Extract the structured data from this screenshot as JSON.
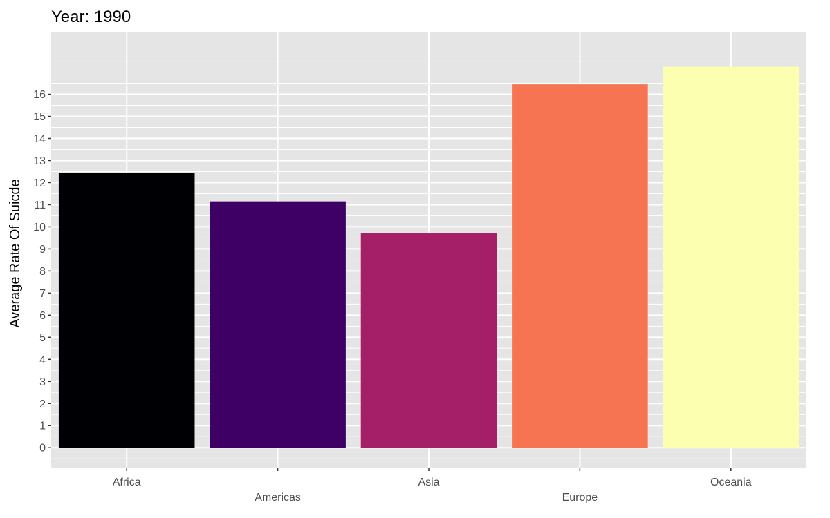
{
  "chart_data": {
    "type": "bar",
    "title": "Year: 1990",
    "xlabel": "",
    "ylabel": "Average Rate Of Suicde",
    "categories": [
      "Africa",
      "Americas",
      "Asia",
      "Europe",
      "Oceania"
    ],
    "values": [
      12.45,
      11.15,
      9.7,
      16.45,
      17.25
    ],
    "colors": [
      "#000004",
      "#3f0066",
      "#a41f67",
      "#f67452",
      "#fcffb0"
    ],
    "ylim": [
      -0.9,
      18.8
    ],
    "yticks": [
      0,
      1,
      2,
      3,
      4,
      5,
      6,
      7,
      8,
      9,
      10,
      11,
      12,
      13,
      14,
      15,
      16
    ],
    "grid": true,
    "legend": "none",
    "panel_background": "#e5e5e5",
    "grid_color": "#ffffff",
    "x_label_stagger": true
  }
}
